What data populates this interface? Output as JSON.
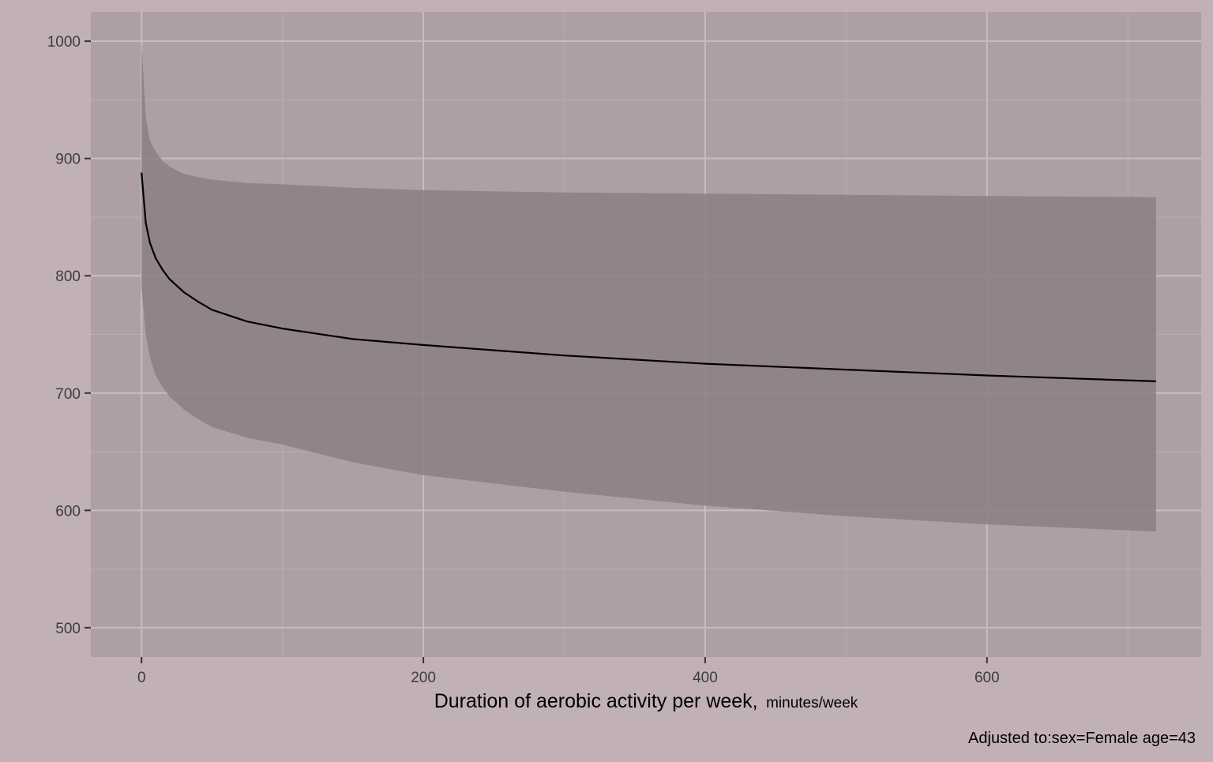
{
  "chart_data": {
    "type": "line",
    "title": "",
    "xlabel": "Duration of aerobic activity per week,",
    "xlabel_unit": "minutes/week",
    "ylabel": "",
    "caption": "Adjusted to:sex=Female age=43",
    "xlim": [
      -36,
      752
    ],
    "ylim": [
      475,
      1025
    ],
    "x_ticks": [
      0,
      200,
      400,
      600
    ],
    "x_tick_labels": [
      "0",
      "200",
      "400",
      "600"
    ],
    "y_ticks": [
      500,
      600,
      700,
      800,
      900,
      1000
    ],
    "y_tick_labels": [
      "500",
      "600",
      "700",
      "800",
      "900",
      "1000"
    ],
    "grid": true,
    "legend": "none",
    "colors": {
      "background": "#c1b1b7",
      "panel": "#ae9fa3",
      "grid_major": "#cbbcc2",
      "grid_minor": "#bcadb2",
      "ribbon": "#8b7f83",
      "line": "#000000"
    },
    "series": [
      {
        "x": [
          0,
          3,
          6,
          10,
          15,
          20,
          30,
          40,
          50,
          75,
          100,
          150,
          200,
          300,
          400,
          500,
          600,
          720
        ],
        "y": [
          888,
          845,
          828,
          815,
          805,
          797,
          786,
          778,
          771,
          761,
          755,
          746,
          741,
          732,
          725,
          720,
          715,
          710
        ],
        "lower": [
          790,
          750,
          730,
          715,
          705,
          697,
          686,
          678,
          671,
          662,
          656,
          641,
          630,
          616,
          604,
          595,
          588,
          582
        ],
        "upper": [
          1000,
          935,
          915,
          906,
          898,
          893,
          887,
          884,
          882,
          879,
          878,
          875,
          873,
          871,
          870,
          869,
          868,
          867
        ]
      }
    ]
  }
}
